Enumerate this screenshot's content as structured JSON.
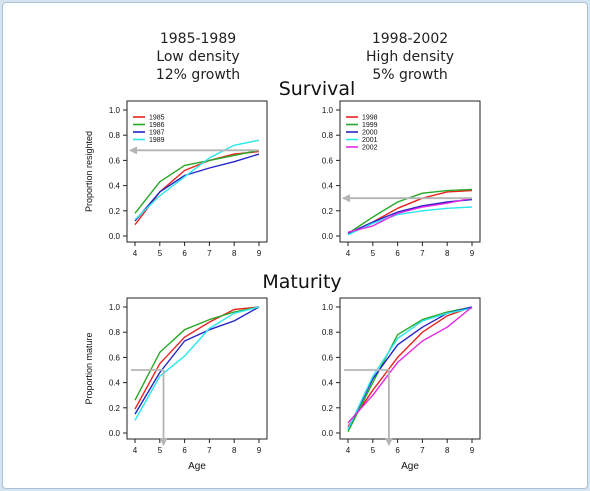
{
  "header": {
    "left": {
      "line1": "1985-1989",
      "line2": "Low density",
      "line3": "12% growth"
    },
    "right": {
      "line1": "1998-2002",
      "line2": "High density",
      "line3": "5% growth"
    }
  },
  "sections": {
    "survival": "Survival",
    "maturity": "Maturity"
  },
  "colors": {
    "c1": "#e8231e",
    "c2": "#28a828",
    "c3": "#2424c8",
    "c4": "#2ee6ee",
    "c5": "#e626e6",
    "guide": "#b4b4b4"
  },
  "chart_data": [
    {
      "type": "line",
      "panel": "survival-left",
      "x": [
        4,
        5,
        6,
        7,
        8,
        9
      ],
      "xticks": [
        "4",
        "5",
        "6",
        "7",
        "8",
        "9"
      ],
      "yticks": [
        "0.0",
        "0.2",
        "0.4",
        "0.6",
        "0.8",
        "1.0"
      ],
      "ylim": [
        0,
        1
      ],
      "xlim": [
        4,
        9
      ],
      "xlabel": "",
      "ylabel": "Proportion resighted",
      "series": [
        {
          "name": "1985",
          "color": "c1",
          "values": [
            0.09,
            0.35,
            0.52,
            0.6,
            0.65,
            0.67
          ]
        },
        {
          "name": "1986",
          "color": "c2",
          "values": [
            0.18,
            0.43,
            0.56,
            0.6,
            0.64,
            0.68
          ]
        },
        {
          "name": "1987",
          "color": "c3",
          "values": [
            0.12,
            0.35,
            0.48,
            0.54,
            0.59,
            0.65
          ]
        },
        {
          "name": "1989",
          "color": "c4",
          "values": [
            0.13,
            0.32,
            0.47,
            0.62,
            0.72,
            0.76
          ]
        }
      ],
      "guide": {
        "y": 0.68,
        "x_from": 9,
        "x_to": 4
      }
    },
    {
      "type": "line",
      "panel": "survival-right",
      "x": [
        4,
        5,
        6,
        7,
        8,
        9
      ],
      "xticks": [
        "4",
        "5",
        "6",
        "7",
        "8",
        "9"
      ],
      "yticks": [
        "0.0",
        "0.2",
        "0.4",
        "0.6",
        "0.8",
        "1.0"
      ],
      "ylim": [
        0,
        1
      ],
      "xlim": [
        4,
        9
      ],
      "xlabel": "",
      "ylabel": "",
      "series": [
        {
          "name": "1998",
          "color": "c1",
          "values": [
            0.02,
            0.11,
            0.22,
            0.3,
            0.35,
            0.36
          ]
        },
        {
          "name": "1999",
          "color": "c2",
          "values": [
            0.02,
            0.15,
            0.27,
            0.34,
            0.36,
            0.37
          ]
        },
        {
          "name": "2000",
          "color": "c3",
          "values": [
            0.02,
            0.11,
            0.19,
            0.24,
            0.27,
            0.29
          ]
        },
        {
          "name": "2001",
          "color": "c4",
          "values": [
            0.01,
            0.1,
            0.17,
            0.2,
            0.22,
            0.23
          ]
        },
        {
          "name": "2002",
          "color": "c5",
          "values": [
            0.03,
            0.08,
            0.18,
            0.23,
            0.26,
            0.3
          ]
        }
      ],
      "guide": {
        "y": 0.3,
        "x_from": 9,
        "x_to": 4
      }
    },
    {
      "type": "line",
      "panel": "maturity-left",
      "x": [
        4,
        5,
        6,
        7,
        8,
        9
      ],
      "xticks": [
        "4",
        "5",
        "6",
        "7",
        "8",
        "9"
      ],
      "yticks": [
        "0.0",
        "0.2",
        "0.4",
        "0.6",
        "0.8",
        "1.0"
      ],
      "ylim": [
        0,
        1
      ],
      "xlim": [
        4,
        9
      ],
      "xlabel": "Age",
      "ylabel": "Proportion mature",
      "series": [
        {
          "name": "1985",
          "color": "c1",
          "values": [
            0.19,
            0.55,
            0.76,
            0.88,
            0.98,
            1.0
          ]
        },
        {
          "name": "1986",
          "color": "c2",
          "values": [
            0.26,
            0.64,
            0.82,
            0.9,
            0.96,
            1.0
          ]
        },
        {
          "name": "1987",
          "color": "c3",
          "values": [
            0.15,
            0.48,
            0.73,
            0.82,
            0.89,
            1.0
          ]
        },
        {
          "name": "1989",
          "color": "c4",
          "values": [
            0.1,
            0.45,
            0.61,
            0.83,
            0.95,
            1.0
          ]
        }
      ],
      "guide": {
        "y": 0.5,
        "x_from": 4,
        "x_to": 5.15,
        "drop_to": 0
      }
    },
    {
      "type": "line",
      "panel": "maturity-right",
      "x": [
        4,
        5,
        6,
        7,
        8,
        9
      ],
      "xticks": [
        "4",
        "5",
        "6",
        "7",
        "8",
        "9"
      ],
      "yticks": [
        "0.0",
        "0.2",
        "0.4",
        "0.6",
        "0.8",
        "1.0"
      ],
      "ylim": [
        0,
        1
      ],
      "xlim": [
        4,
        9
      ],
      "xlabel": "Age",
      "ylabel": "",
      "series": [
        {
          "name": "1998",
          "color": "c1",
          "values": [
            0.05,
            0.34,
            0.6,
            0.8,
            0.93,
            1.0
          ]
        },
        {
          "name": "1999",
          "color": "c2",
          "values": [
            0.01,
            0.4,
            0.78,
            0.9,
            0.96,
            1.0
          ]
        },
        {
          "name": "2000",
          "color": "c3",
          "values": [
            0.03,
            0.43,
            0.7,
            0.84,
            0.95,
            1.0
          ]
        },
        {
          "name": "2001",
          "color": "c4",
          "values": [
            0.03,
            0.45,
            0.75,
            0.89,
            0.95,
            0.99
          ]
        },
        {
          "name": "2002",
          "color": "c5",
          "values": [
            0.08,
            0.3,
            0.56,
            0.73,
            0.84,
            1.0
          ]
        }
      ],
      "guide": {
        "y": 0.5,
        "x_from": 4,
        "x_to": 5.65,
        "drop_to": 0
      }
    }
  ]
}
